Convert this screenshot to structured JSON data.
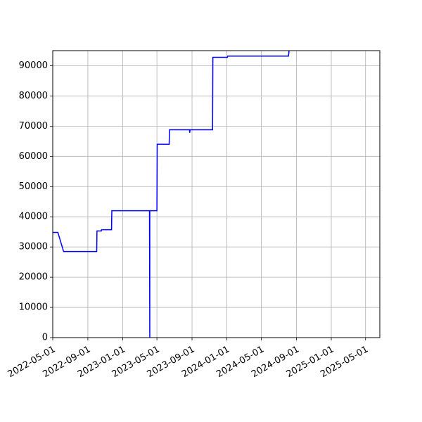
{
  "chart_data": {
    "type": "line",
    "title": "",
    "xlabel": "",
    "ylabel": "",
    "x_type": "date",
    "xlim": [
      "2022-05-01",
      "2025-06-20"
    ],
    "ylim": [
      0,
      95000
    ],
    "grid": true,
    "colors": {
      "series": "#0000ff",
      "grid": "#b0b0b0",
      "axis": "#000000",
      "background": "#ffffff"
    },
    "x_ticks": [
      "2022-05-01",
      "2022-09-01",
      "2023-01-01",
      "2023-05-01",
      "2023-09-01",
      "2024-01-01",
      "2024-05-01",
      "2024-09-01",
      "2025-01-01",
      "2025-05-01"
    ],
    "y_ticks": [
      0,
      10000,
      20000,
      30000,
      40000,
      50000,
      60000,
      70000,
      80000,
      90000
    ],
    "y_tick_labels": [
      "0",
      "10000",
      "20000",
      "30000",
      "40000",
      "50000",
      "60000",
      "70000",
      "80000",
      "90000"
    ],
    "series": [
      {
        "points": [
          [
            "2022-05-01",
            34800
          ],
          [
            "2022-05-19",
            34800
          ],
          [
            "2022-06-08",
            28500
          ],
          [
            "2022-10-02",
            28500
          ],
          [
            "2022-10-03",
            35300
          ],
          [
            "2022-10-18",
            35300
          ],
          [
            "2022-10-19",
            35700
          ],
          [
            "2022-11-23",
            35700
          ],
          [
            "2022-11-24",
            42000
          ],
          [
            "2023-04-05",
            42000
          ],
          [
            "2023-04-06",
            0
          ],
          [
            "2023-04-06",
            42000
          ],
          [
            "2023-05-01",
            42000
          ],
          [
            "2023-05-02",
            64000
          ],
          [
            "2023-06-13",
            64000
          ],
          [
            "2023-06-14",
            68800
          ],
          [
            "2023-08-23",
            68800
          ],
          [
            "2023-08-24",
            67800
          ],
          [
            "2023-08-25",
            68800
          ],
          [
            "2023-11-12",
            68800
          ],
          [
            "2023-11-13",
            92800
          ],
          [
            "2024-01-03",
            92800
          ],
          [
            "2024-01-04",
            93200
          ],
          [
            "2024-08-04",
            93200
          ],
          [
            "2024-08-06",
            95000
          ]
        ]
      }
    ]
  }
}
